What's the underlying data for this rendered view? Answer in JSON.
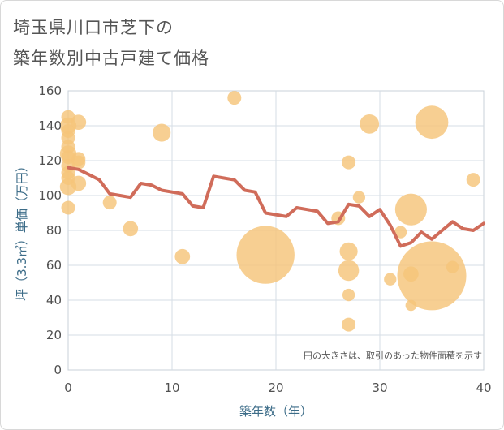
{
  "title_line1": "埼玉県川口市芝下の",
  "title_line2": "築年数別中古戸建て価格",
  "colors": {
    "bubble": "#f5c57a",
    "trend": "#d06c5a",
    "axis_title": "#3c6c88",
    "grid": "#d5dde5"
  },
  "chart_data": {
    "type": "scatter",
    "xlabel": "築年数（年）",
    "ylabel": "坪（3.3㎡）単価（万円）",
    "xlim": [
      0,
      40
    ],
    "ylim": [
      0,
      160
    ],
    "x_ticks": [
      "0",
      "10",
      "20",
      "30",
      "40"
    ],
    "y_ticks": [
      "0",
      "20",
      "40",
      "60",
      "80",
      "100",
      "120",
      "140",
      "160"
    ],
    "grid": true,
    "annotation": "円の大きさは、取引のあった物件面積を示す",
    "series": [
      {
        "type": "bubble",
        "points": [
          {
            "x": 0,
            "y": 145,
            "s": 1
          },
          {
            "x": 0,
            "y": 140,
            "s": 1.2
          },
          {
            "x": 0,
            "y": 137,
            "s": 1
          },
          {
            "x": 0,
            "y": 133,
            "s": 1
          },
          {
            "x": 0,
            "y": 128,
            "s": 1
          },
          {
            "x": 0,
            "y": 124,
            "s": 1.2
          },
          {
            "x": 0,
            "y": 122,
            "s": 1
          },
          {
            "x": 0,
            "y": 117,
            "s": 1
          },
          {
            "x": 0,
            "y": 113,
            "s": 1
          },
          {
            "x": 0,
            "y": 110,
            "s": 1
          },
          {
            "x": 0,
            "y": 105,
            "s": 1.2
          },
          {
            "x": 0,
            "y": 93,
            "s": 1
          },
          {
            "x": 1,
            "y": 142,
            "s": 1.1
          },
          {
            "x": 1,
            "y": 121,
            "s": 1
          },
          {
            "x": 1,
            "y": 119,
            "s": 1
          },
          {
            "x": 1,
            "y": 107,
            "s": 1.1
          },
          {
            "x": 4,
            "y": 96,
            "s": 1
          },
          {
            "x": 6,
            "y": 81,
            "s": 1.1
          },
          {
            "x": 9,
            "y": 136,
            "s": 1.3
          },
          {
            "x": 11,
            "y": 65,
            "s": 1.1
          },
          {
            "x": 16,
            "y": 156,
            "s": 1
          },
          {
            "x": 19,
            "y": 66,
            "s": 4.2
          },
          {
            "x": 26,
            "y": 87,
            "s": 1
          },
          {
            "x": 27,
            "y": 119,
            "s": 1
          },
          {
            "x": 27,
            "y": 68,
            "s": 1.3
          },
          {
            "x": 27,
            "y": 57,
            "s": 1.5
          },
          {
            "x": 27,
            "y": 43,
            "s": 0.9
          },
          {
            "x": 27,
            "y": 26,
            "s": 1
          },
          {
            "x": 28,
            "y": 99,
            "s": 0.9
          },
          {
            "x": 29,
            "y": 141,
            "s": 1.4
          },
          {
            "x": 31,
            "y": 52,
            "s": 0.9
          },
          {
            "x": 32,
            "y": 79,
            "s": 0.9
          },
          {
            "x": 33,
            "y": 92,
            "s": 2.3
          },
          {
            "x": 33,
            "y": 55,
            "s": 1.1
          },
          {
            "x": 33,
            "y": 37,
            "s": 0.8
          },
          {
            "x": 35,
            "y": 142,
            "s": 2.4
          },
          {
            "x": 35,
            "y": 54,
            "s": 5.0
          },
          {
            "x": 37,
            "y": 59,
            "s": 0.9
          },
          {
            "x": 39,
            "y": 109,
            "s": 1
          }
        ]
      },
      {
        "type": "line",
        "x": [
          0,
          1,
          2,
          3,
          4,
          5,
          6,
          7,
          8,
          9,
          10,
          11,
          12,
          13,
          14,
          15,
          16,
          17,
          18,
          19,
          20,
          21,
          22,
          23,
          24,
          25,
          26,
          27,
          28,
          29,
          30,
          31,
          32,
          33,
          34,
          35,
          36,
          37,
          38,
          39,
          40
        ],
        "y": [
          116,
          115,
          112,
          109,
          101,
          100,
          99,
          107,
          106,
          103,
          102,
          101,
          94,
          93,
          111,
          110,
          109,
          103,
          102,
          90,
          89,
          88,
          93,
          92,
          91,
          84,
          85,
          95,
          94,
          88,
          92,
          83,
          71,
          73,
          79,
          75,
          80,
          85,
          81,
          80,
          84
        ]
      }
    ]
  }
}
